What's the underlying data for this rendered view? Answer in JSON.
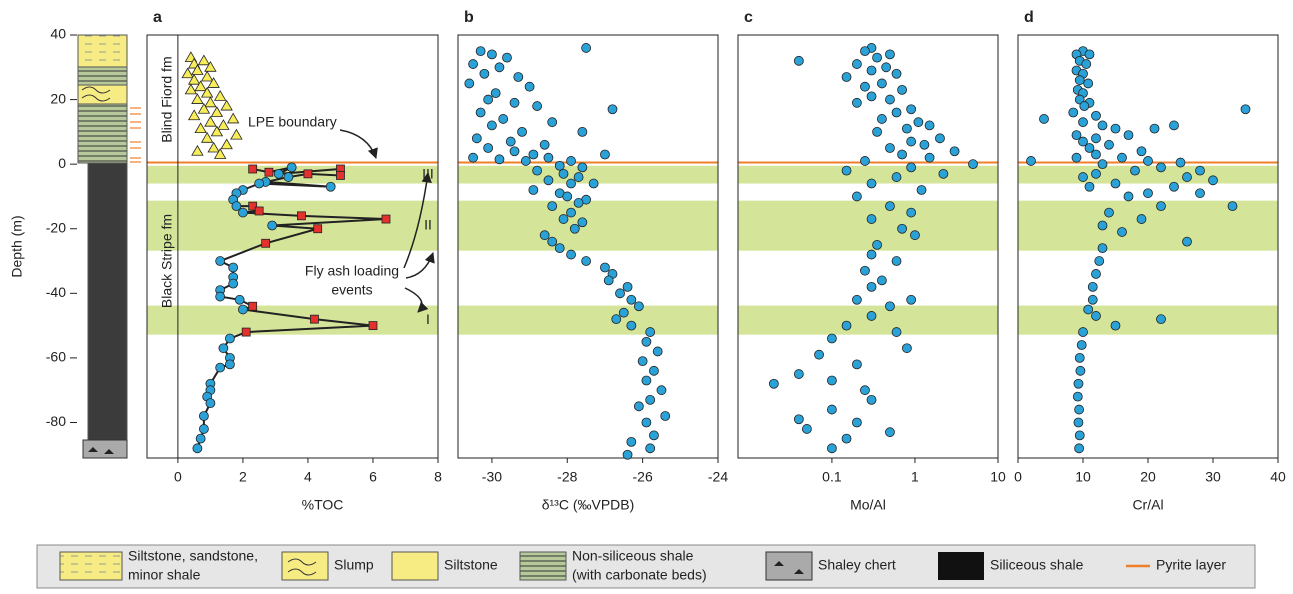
{
  "chart_data": [
    {
      "type": "scatter",
      "panel_label": "a",
      "x_label": "%TOC",
      "y_label": "Depth (m)",
      "xlim": [
        -0.95,
        8
      ],
      "ylim": [
        -91,
        40
      ],
      "xticks": [
        0,
        2,
        4,
        6,
        8
      ],
      "yticks": [
        40,
        20,
        0,
        -20,
        -40,
        -60,
        -80
      ],
      "bands": [
        {
          "from": -0.5,
          "to": -6,
          "label": "III"
        },
        {
          "from": -11.3,
          "to": -26.8,
          "label": "II"
        },
        {
          "from": -43.8,
          "to": -52.8,
          "label": "I"
        }
      ],
      "band_color": "#d4e59a",
      "boundary": 0.5,
      "boundary_color": "#f07f2a",
      "annotations": {
        "upper_fm": "Blind Fiord fm",
        "lower_fm": "Black Stripe fm",
        "boundary": "LPE boundary",
        "events": [
          "Fly ash loading",
          "events"
        ]
      },
      "series": [
        {
          "marker": "triangle",
          "color": "#f7ec5a",
          "line": false,
          "x": [
            0.4,
            0.8,
            0.5,
            1.0,
            0.6,
            0.3,
            0.9,
            0.5,
            1.1,
            0.7,
            0.4,
            0.9,
            1.3,
            0.6,
            1.0,
            1.5,
            0.8,
            1.2,
            0.5,
            1.7,
            1.0,
            1.4,
            0.7,
            1.2,
            1.8,
            0.9,
            1.5,
            1.1,
            0.6,
            1.3
          ],
          "values": [
            33,
            32,
            31,
            30,
            29,
            28,
            27,
            26,
            25,
            24,
            23,
            22,
            21,
            20,
            19,
            18,
            17,
            16,
            15,
            14,
            13,
            12,
            11,
            10,
            9,
            8,
            6,
            5,
            4,
            3
          ]
        },
        {
          "marker": "mixed",
          "markers": [
            "square",
            "square",
            "circle",
            "circle",
            "square",
            "square",
            "square",
            "circle",
            "circle",
            "circle",
            "circle",
            "circle",
            "circle",
            "circle",
            "circle",
            "square",
            "square",
            "circle",
            "square",
            "square",
            "circle",
            "square",
            "square",
            "circle",
            "circle",
            "circle",
            "circle",
            "circle",
            "circle",
            "circle",
            "square",
            "circle",
            "square",
            "square",
            "square",
            "circle",
            "circle",
            "circle",
            "circle",
            "circle",
            "circle",
            "circle",
            "circle",
            "circle",
            "circle",
            "circle",
            "circle",
            "circle"
          ],
          "colors": {
            "circle": "#2aa2d8",
            "square": "#e3312d"
          },
          "line": true,
          "line_color": "#222222",
          "x": [
            2.3,
            2.8,
            3.5,
            3.1,
            5.0,
            5.0,
            4.0,
            3.4,
            2.7,
            4.7,
            2.5,
            2.0,
            1.8,
            1.7,
            1.8,
            2.3,
            2.5,
            2.0,
            3.8,
            6.4,
            2.9,
            4.3,
            2.7,
            1.3,
            1.7,
            1.7,
            1.7,
            1.3,
            1.3,
            1.9,
            2.3,
            2.0,
            4.2,
            6.0,
            2.1,
            1.6,
            1.4,
            1.6,
            1.6,
            1.3,
            1.0,
            1.0,
            0.9,
            1.0,
            0.8,
            0.8,
            0.7,
            0.6
          ],
          "values": [
            -1.5,
            -2.5,
            -1,
            -3,
            -1.5,
            -3.5,
            -3,
            -4,
            -5.5,
            -7,
            -6,
            -8,
            -9,
            -11,
            -13,
            -13,
            -14.5,
            -15,
            -16,
            -17,
            -19,
            -20,
            -24.5,
            -30,
            -32,
            -35,
            -37,
            -39,
            -41,
            -42,
            -44,
            -45,
            -48,
            -50,
            -52,
            -54,
            -57,
            -60,
            -62,
            -63,
            -68,
            -70,
            -72,
            -74,
            -78,
            -82,
            -85,
            -88
          ]
        }
      ]
    },
    {
      "type": "scatter",
      "panel_label": "b",
      "x_label": "δ¹³C (‰VPDB)",
      "xlim": [
        -30.9,
        -24
      ],
      "ylim": [
        -91,
        40
      ],
      "xticks": [
        -30,
        -28,
        -26,
        -24
      ],
      "series": [
        {
          "marker": "circle",
          "color": "#2aa2d8",
          "line": false,
          "x": [
            -30.3,
            -30.0,
            -29.6,
            -30.5,
            -29.8,
            -30.2,
            -29.3,
            -30.6,
            -29.0,
            -29.9,
            -30.1,
            -29.4,
            -28.8,
            -26.8,
            -30.3,
            -29.7,
            -28.4,
            -30.0,
            -29.2,
            -27.6,
            -30.4,
            -29.5,
            -28.6,
            -30.1,
            -29.4,
            -28.9,
            -30.5,
            -29.8,
            -29.1,
            -28.5,
            -27.9,
            -27.5,
            -27.0,
            -28.2,
            -27.6,
            -28.8,
            -28.1,
            -27.7,
            -28.5,
            -27.9,
            -28.9,
            -27.3,
            -28.2,
            -28.0,
            -27.5,
            -27.7,
            -28.4,
            -27.9,
            -28.1,
            -27.6,
            -27.8,
            -28.6,
            -28.4,
            -28.2,
            -27.9,
            -27.5,
            -27.0,
            -26.8,
            -26.9,
            -26.4,
            -26.6,
            -26.3,
            -26.1,
            -26.5,
            -26.7,
            -26.3,
            -25.8,
            -25.9,
            -25.6,
            -26.0,
            -25.7,
            -25.9,
            -25.5,
            -25.8,
            -26.1,
            -25.4,
            -25.9,
            -25.7,
            -26.3,
            -25.8,
            -26.4
          ],
          "values": [
            35,
            34,
            33,
            31,
            30,
            28,
            27,
            25,
            24,
            22,
            20,
            19,
            18,
            17,
            16,
            14,
            13,
            12,
            10,
            10,
            8,
            7,
            6,
            5,
            4,
            3,
            2,
            1.5,
            1,
            2,
            1,
            36,
            3,
            -0.5,
            -1,
            -2,
            -3,
            -4,
            -5,
            -6,
            -8,
            -6,
            -9,
            -10,
            -11,
            -12,
            -13,
            -15,
            -17,
            -18,
            -20,
            -22,
            -24,
            -26,
            -28,
            -30,
            -32,
            -34,
            -36,
            -38,
            -40,
            -42,
            -44,
            -46,
            -48,
            -50,
            -52,
            -55,
            -58,
            -61,
            -64,
            -67,
            -70,
            -73,
            -75,
            -78,
            -80,
            -84,
            -86,
            -88,
            -90
          ]
        }
      ]
    },
    {
      "type": "scatter",
      "panel_label": "c",
      "x_label": "Mo/Al",
      "log_x": true,
      "xlim": [
        0.0074,
        10
      ],
      "ylim": [
        -91,
        40
      ],
      "xticks": [
        0.1,
        1,
        10
      ],
      "series": [
        {
          "marker": "circle",
          "color": "#2aa2d8",
          "line": false,
          "x": [
            0.3,
            0.25,
            0.5,
            0.35,
            0.04,
            0.2,
            0.45,
            0.3,
            0.6,
            0.15,
            0.4,
            0.25,
            0.7,
            0.3,
            0.5,
            0.2,
            0.9,
            0.6,
            0.4,
            1.1,
            1.5,
            0.8,
            0.35,
            2.0,
            0.9,
            1.3,
            0.5,
            3.0,
            0.7,
            1.5,
            0.25,
            5.0,
            0.9,
            0.15,
            2.2,
            0.6,
            0.3,
            1.2,
            0.2,
            0.5,
            0.9,
            0.3,
            0.7,
            1.0,
            0.35,
            0.3,
            0.6,
            0.25,
            0.4,
            0.3,
            0.2,
            0.9,
            0.5,
            0.3,
            0.15,
            0.6,
            0.1,
            0.8,
            0.07,
            0.2,
            0.04,
            0.1,
            0.02,
            0.25,
            0.3,
            0.1,
            0.04,
            0.2,
            0.05,
            0.5,
            0.15,
            0.1
          ],
          "values": [
            36,
            35,
            34,
            33,
            32,
            31,
            30,
            29,
            28,
            27,
            25,
            24,
            23,
            21,
            20,
            19,
            17,
            16,
            14,
            13,
            12,
            11,
            10,
            8,
            7,
            6,
            5,
            4,
            3,
            2,
            1,
            0,
            -1,
            -2,
            -3,
            -4,
            -6,
            -8,
            -10,
            -13,
            -15,
            -17,
            -20,
            -22,
            -25,
            -28,
            -30,
            -33,
            -36,
            -38,
            -42,
            -42,
            -44,
            -47,
            -50,
            -52,
            -54,
            -57,
            -59,
            -62,
            -65,
            -67,
            -68,
            -70,
            -73,
            -76,
            -79,
            -80,
            -82,
            -83,
            -85,
            -88
          ]
        }
      ]
    },
    {
      "type": "scatter",
      "panel_label": "d",
      "x_label": "Cr/Al",
      "xlim": [
        0,
        40
      ],
      "ylim": [
        -91,
        40
      ],
      "xticks": [
        0,
        10,
        20,
        30,
        40
      ],
      "series": [
        {
          "marker": "circle",
          "color": "#2aa2d8",
          "line": false,
          "x": [
            10,
            9,
            11,
            9.5,
            10.5,
            9,
            10,
            9.5,
            10.8,
            9.2,
            10,
            9.5,
            11,
            10.2,
            35,
            8.5,
            12,
            4,
            10,
            13,
            15,
            21,
            24,
            9,
            12,
            17,
            10,
            14,
            11,
            19,
            12,
            9,
            16,
            2,
            20,
            13,
            25,
            22,
            28,
            18,
            12,
            26,
            10,
            30,
            15,
            24,
            11,
            20,
            28,
            17,
            33,
            22,
            14,
            19,
            13,
            16,
            26,
            13,
            12.5,
            12,
            11.5,
            11.5,
            10.8,
            12,
            22,
            15,
            10,
            9.8,
            9.5,
            9.6,
            9.3,
            9.2,
            9.4,
            9.3,
            9.5,
            9.4
          ],
          "values": [
            35,
            34,
            34,
            32,
            31,
            29,
            28,
            26,
            25,
            23,
            22,
            20,
            19,
            18,
            17,
            16,
            15,
            14,
            13,
            12,
            11,
            11,
            12,
            9,
            8,
            9,
            7,
            6,
            5,
            4,
            3,
            2,
            2,
            1,
            1,
            0,
            0.5,
            -1,
            -2,
            -2,
            -3,
            -4,
            -4,
            -5,
            -6,
            -7,
            -7,
            -9,
            -9,
            -10,
            -13,
            -13,
            -15,
            -17,
            -19,
            -21,
            -24,
            -26,
            -30,
            -34,
            -38,
            -42,
            -45,
            -47,
            -48,
            -50,
            -52,
            -56,
            -60,
            -64,
            -68,
            -72,
            -76,
            -80,
            -84,
            -88
          ]
        }
      ]
    }
  ],
  "legend": {
    "items": [
      [
        "Siltstone, sandstone,",
        "minor shale"
      ],
      [
        "Slump"
      ],
      [
        "Siltstone"
      ],
      [
        "Non-siliceous shale",
        "(with carbonate beds)"
      ],
      [
        "Shaley chert"
      ],
      [
        "Siliceous shale"
      ],
      [
        "Pyrite layer"
      ]
    ]
  }
}
